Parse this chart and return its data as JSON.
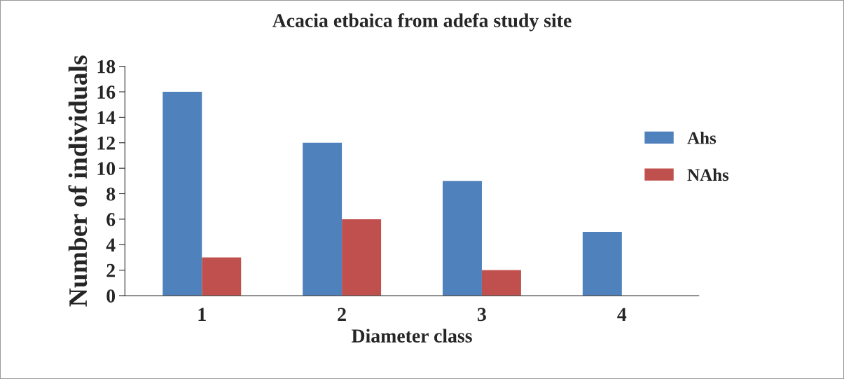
{
  "chart_data": {
    "type": "bar",
    "title": "Acacia etbaica from adefa study site",
    "xlabel": "Diameter class",
    "ylabel": "Number of individuals",
    "categories": [
      "1",
      "2",
      "3",
      "4"
    ],
    "series": [
      {
        "name": "Ahs",
        "color": "#4f81bd",
        "values": [
          16,
          12,
          9,
          5
        ]
      },
      {
        "name": "NAhs",
        "color": "#c0504d",
        "values": [
          3,
          6,
          2,
          0
        ]
      }
    ],
    "ylim": [
      0,
      18
    ],
    "yticks": [
      0,
      2,
      4,
      6,
      8,
      10,
      12,
      14,
      16,
      18
    ],
    "grid": false,
    "legend": "right"
  }
}
